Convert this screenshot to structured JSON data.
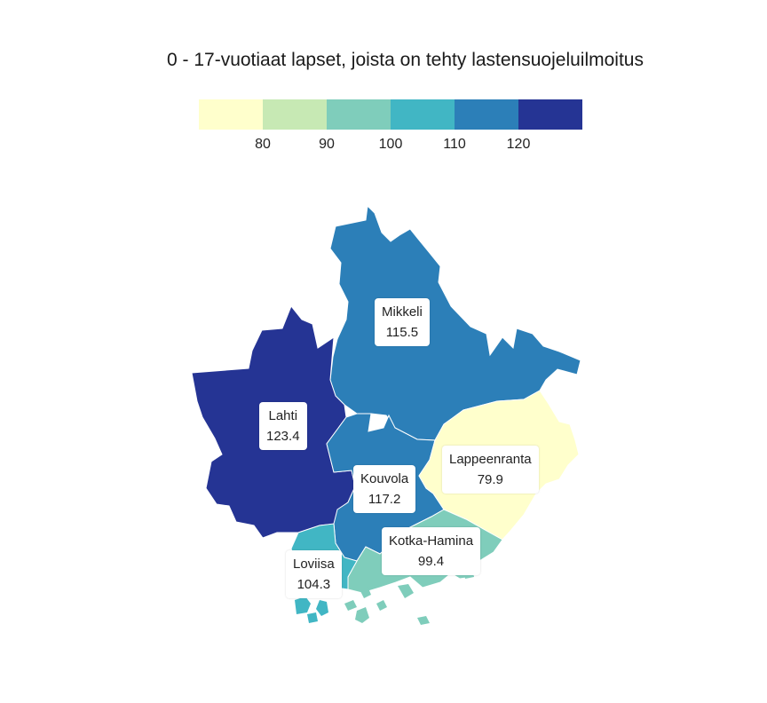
{
  "title": "0 - 17-vuotiaat lapset, joista on tehty lastensuojeluilmoitus",
  "legend": {
    "colors": [
      "#ffffcc",
      "#c7e9b4",
      "#7fcdbb",
      "#41b6c4",
      "#2c7fb8",
      "#253494"
    ],
    "ticks": [
      "80",
      "90",
      "100",
      "110",
      "120"
    ]
  },
  "regions": [
    {
      "id": "mikkeli",
      "name": "Mikkeli",
      "value": "115.5",
      "color": "#2c7fb8"
    },
    {
      "id": "lahti",
      "name": "Lahti",
      "value": "123.4",
      "color": "#253494"
    },
    {
      "id": "kouvola",
      "name": "Kouvola",
      "value": "117.2",
      "color": "#2c7fb8"
    },
    {
      "id": "lappeenranta",
      "name": "Lappeenranta",
      "value": "79.9",
      "color": "#ffffcc"
    },
    {
      "id": "kotka-hamina",
      "name": "Kotka-Hamina",
      "value": "99.4",
      "color": "#7fcdbb"
    },
    {
      "id": "loviisa",
      "name": "Loviisa",
      "value": "104.3",
      "color": "#41b6c4"
    }
  ]
}
